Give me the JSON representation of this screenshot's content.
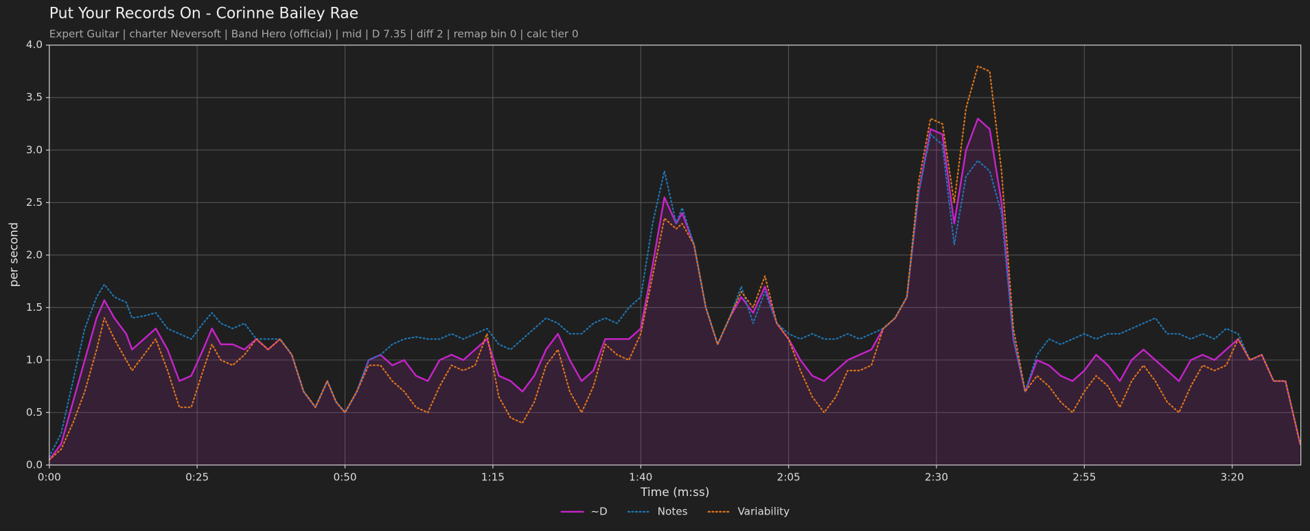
{
  "chart_data": {
    "type": "line",
    "title": "Put Your Records On - Corinne Bailey Rae",
    "subtitle": "Expert Guitar  |  charter Neversoft  |  Band Hero (official)  |  mid  |  D 7.35  |  diff 2  |  remap bin 0  |  calc tier 0",
    "x_label": "Time (m:ss)",
    "y_label": "per second",
    "xlim": [
      0,
      211.6
    ],
    "ylim": [
      0,
      4
    ],
    "xticks": [
      {
        "value": 0,
        "label": "0:00"
      },
      {
        "value": 25,
        "label": "0:25"
      },
      {
        "value": 50,
        "label": "0:50"
      },
      {
        "value": 75,
        "label": "1:15"
      },
      {
        "value": 100,
        "label": "1:40"
      },
      {
        "value": 125,
        "label": "2:05"
      },
      {
        "value": 150,
        "label": "2:30"
      },
      {
        "value": 175,
        "label": "2:55"
      },
      {
        "value": 200,
        "label": "3:20"
      }
    ],
    "yticks": [
      {
        "value": 0,
        "label": "0.0"
      },
      0.5,
      {
        "value": 1,
        "label": "1.0"
      },
      1.5,
      {
        "value": 2,
        "label": "2.0"
      },
      2.5,
      {
        "value": 3,
        "label": "3.0"
      },
      3.5,
      {
        "value": 4,
        "label": "4.0"
      }
    ],
    "grid": true,
    "legend": "bottom",
    "x": [
      0,
      2,
      4,
      6,
      8,
      9.3,
      11,
      13,
      14,
      16,
      18,
      20,
      22,
      24,
      26,
      27.5,
      29,
      31,
      33,
      35,
      37,
      39,
      41,
      43,
      45,
      47,
      48.5,
      50,
      52,
      54,
      56,
      58,
      60,
      62,
      64,
      66,
      68,
      70,
      72,
      74,
      76,
      78,
      80,
      82,
      84,
      86,
      88,
      90,
      92,
      94,
      96,
      98,
      100,
      102,
      104,
      106,
      107,
      109,
      111,
      113,
      115,
      117,
      119,
      121,
      123,
      125,
      127,
      129,
      131,
      133,
      135,
      137,
      139,
      141,
      143,
      145,
      147,
      149,
      151,
      153,
      155,
      157,
      159,
      161,
      163,
      165,
      167,
      169,
      171,
      173,
      175,
      177,
      179,
      181,
      183,
      185,
      187,
      189,
      191,
      193,
      195,
      197,
      199,
      201,
      203,
      205,
      207,
      209,
      211.5
    ],
    "series": [
      {
        "name": "~D",
        "color": "#c724c9",
        "dash": "solid",
        "area": true,
        "values": [
          0.05,
          0.2,
          0.6,
          1.0,
          1.4,
          1.57,
          1.4,
          1.25,
          1.1,
          1.2,
          1.3,
          1.1,
          0.8,
          0.85,
          1.1,
          1.3,
          1.15,
          1.15,
          1.1,
          1.2,
          1.1,
          1.2,
          1.05,
          0.7,
          0.55,
          0.8,
          0.6,
          0.5,
          0.7,
          1.0,
          1.05,
          0.95,
          1.0,
          0.85,
          0.8,
          1.0,
          1.05,
          1.0,
          1.1,
          1.2,
          0.85,
          0.8,
          0.7,
          0.85,
          1.1,
          1.25,
          1.0,
          0.8,
          0.9,
          1.2,
          1.2,
          1.2,
          1.3,
          1.9,
          2.55,
          2.3,
          2.4,
          2.1,
          1.5,
          1.15,
          1.4,
          1.6,
          1.45,
          1.7,
          1.35,
          1.2,
          1.0,
          0.85,
          0.8,
          0.9,
          1.0,
          1.05,
          1.1,
          1.3,
          1.4,
          1.6,
          2.6,
          3.2,
          3.15,
          2.3,
          3.0,
          3.3,
          3.2,
          2.5,
          1.2,
          0.7,
          1.0,
          0.95,
          0.85,
          0.8,
          0.9,
          1.05,
          0.95,
          0.8,
          1.0,
          1.1,
          1.0,
          0.9,
          0.8,
          1.0,
          1.05,
          1.0,
          1.1,
          1.2,
          1.0,
          1.05,
          0.8,
          0.8,
          0.2
        ]
      },
      {
        "name": "Notes",
        "color": "#1f77b4",
        "dash": "dotted",
        "values": [
          0.08,
          0.3,
          0.8,
          1.3,
          1.6,
          1.72,
          1.6,
          1.55,
          1.4,
          1.42,
          1.45,
          1.3,
          1.25,
          1.2,
          1.35,
          1.45,
          1.35,
          1.3,
          1.35,
          1.2,
          1.2,
          1.2,
          1.05,
          0.7,
          0.55,
          0.8,
          0.6,
          0.5,
          0.7,
          1.0,
          1.05,
          1.15,
          1.2,
          1.22,
          1.2,
          1.2,
          1.25,
          1.2,
          1.25,
          1.3,
          1.15,
          1.1,
          1.2,
          1.3,
          1.4,
          1.35,
          1.25,
          1.25,
          1.35,
          1.4,
          1.35,
          1.5,
          1.6,
          2.3,
          2.8,
          2.3,
          2.45,
          2.1,
          1.5,
          1.15,
          1.4,
          1.7,
          1.35,
          1.65,
          1.35,
          1.25,
          1.2,
          1.25,
          1.2,
          1.2,
          1.25,
          1.2,
          1.25,
          1.3,
          1.4,
          1.6,
          2.6,
          3.15,
          3.05,
          2.1,
          2.75,
          2.9,
          2.8,
          2.4,
          1.2,
          0.7,
          1.05,
          1.2,
          1.15,
          1.2,
          1.25,
          1.2,
          1.25,
          1.25,
          1.3,
          1.35,
          1.4,
          1.25,
          1.25,
          1.2,
          1.25,
          1.2,
          1.3,
          1.25,
          1.0,
          1.05,
          0.8,
          0.8,
          0.2
        ]
      },
      {
        "name": "Variability",
        "color": "#e0751c",
        "dash": "dotted",
        "values": [
          0.05,
          0.15,
          0.4,
          0.7,
          1.1,
          1.4,
          1.2,
          1.0,
          0.9,
          1.05,
          1.2,
          0.9,
          0.55,
          0.55,
          0.9,
          1.15,
          1.0,
          0.95,
          1.05,
          1.2,
          1.1,
          1.2,
          1.05,
          0.7,
          0.55,
          0.8,
          0.6,
          0.5,
          0.7,
          0.95,
          0.95,
          0.8,
          0.7,
          0.55,
          0.5,
          0.75,
          0.95,
          0.9,
          0.95,
          1.25,
          0.65,
          0.45,
          0.4,
          0.6,
          0.95,
          1.1,
          0.7,
          0.5,
          0.75,
          1.15,
          1.05,
          1.0,
          1.25,
          1.8,
          2.35,
          2.25,
          2.3,
          2.1,
          1.5,
          1.15,
          1.4,
          1.65,
          1.5,
          1.8,
          1.35,
          1.2,
          0.9,
          0.65,
          0.5,
          0.65,
          0.9,
          0.9,
          0.95,
          1.3,
          1.4,
          1.6,
          2.7,
          3.3,
          3.25,
          2.5,
          3.4,
          3.8,
          3.75,
          2.8,
          1.3,
          0.7,
          0.85,
          0.75,
          0.6,
          0.5,
          0.7,
          0.85,
          0.75,
          0.55,
          0.8,
          0.95,
          0.8,
          0.6,
          0.5,
          0.75,
          0.95,
          0.9,
          0.95,
          1.2,
          1.0,
          1.05,
          0.8,
          0.8,
          0.2
        ]
      }
    ]
  }
}
